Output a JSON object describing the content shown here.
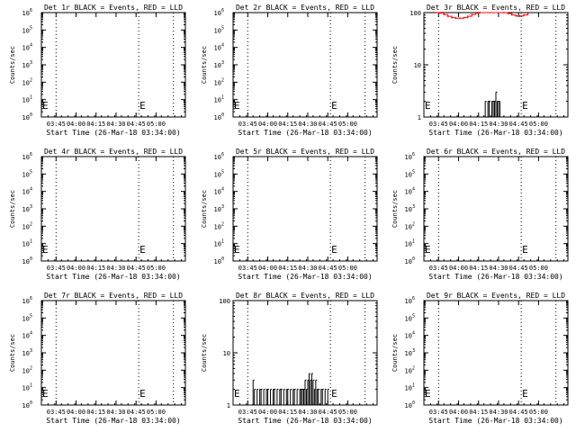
{
  "figure": {
    "background": "#ffffff",
    "axis_color": "#000000",
    "events_color": "#000000",
    "lld_color": "#ff0000"
  },
  "chart_data": [
    {
      "type": "line",
      "title": "Det 1r BLACK = Events, RED = LLD",
      "xlabel": "Start Time (26-Mar-18 03:34:00)",
      "ylabel": "Counts/sec",
      "yscale": "log",
      "ylim": [
        1,
        1000000
      ],
      "ytick_values": [
        1,
        10,
        100,
        1000,
        10000,
        100000,
        1000000
      ],
      "ytick_labels": [
        "10^0",
        "10^1",
        "10^2",
        "10^3",
        "10^4",
        "10^5",
        "10^6"
      ],
      "xticks": [
        "03:45",
        "04:00",
        "04:15",
        "04:30",
        "04:45",
        "05:00"
      ],
      "xlim_min": [
        0,
        108
      ],
      "xtick_min": [
        11,
        26,
        41,
        56,
        71,
        86
      ],
      "markers": [
        {
          "label": "E",
          "x_min": 0
        },
        {
          "label": "E",
          "x_min": 73
        }
      ],
      "dotted_lines_min": [
        11,
        73,
        99
      ],
      "series": []
    },
    {
      "type": "line",
      "title": "Det 2r BLACK = Events, RED = LLD",
      "xlabel": "Start Time (26-Mar-18 03:34:00)",
      "ylabel": "Counts/sec",
      "yscale": "log",
      "ylim": [
        1,
        1000000
      ],
      "ytick_values": [
        1,
        10,
        100,
        1000,
        10000,
        100000,
        1000000
      ],
      "ytick_labels": [
        "10^0",
        "10^1",
        "10^2",
        "10^3",
        "10^4",
        "10^5",
        "10^6"
      ],
      "xticks": [
        "03:45",
        "04:00",
        "04:15",
        "04:30",
        "04:45",
        "05:00"
      ],
      "xlim_min": [
        0,
        108
      ],
      "xtick_min": [
        11,
        26,
        41,
        56,
        71,
        86
      ],
      "markers": [
        {
          "label": "E",
          "x_min": 0
        },
        {
          "label": "E",
          "x_min": 73
        }
      ],
      "dotted_lines_min": [
        11,
        73,
        99
      ],
      "series": []
    },
    {
      "type": "line",
      "title": "Det 3r BLACK = Events, RED = LLD",
      "xlabel": "Start Time (26-Mar-18 03:34:00)",
      "ylabel": "Counts/sec",
      "yscale": "log",
      "ylim": [
        1,
        100
      ],
      "ytick_values": [
        1,
        10,
        100
      ],
      "ytick_labels": [
        "1",
        "10",
        "100"
      ],
      "xticks": [
        "03:45",
        "04:00",
        "04:15",
        "04:30",
        "04:45",
        "05:00"
      ],
      "xlim_min": [
        0,
        108
      ],
      "xtick_min": [
        11,
        26,
        41,
        56,
        71,
        86
      ],
      "markers": [
        {
          "label": "E",
          "x_min": 0
        },
        {
          "label": "E",
          "x_min": 73
        }
      ],
      "dotted_lines_min": [
        11,
        73,
        99
      ],
      "series": [
        {
          "kind": "step",
          "color": "#ff0000",
          "x": [
            9,
            12,
            15,
            18,
            21,
            24,
            27,
            30,
            33,
            36,
            39,
            42,
            60,
            63,
            66,
            69,
            72,
            75,
            78
          ],
          "y": [
            100,
            98,
            92,
            85,
            80,
            78,
            78,
            80,
            85,
            92,
            98,
            100,
            100,
            96,
            90,
            86,
            86,
            90,
            96
          ]
        },
        {
          "kind": "spikes",
          "color": "#000000",
          "x": [
            45,
            46,
            47,
            48,
            49,
            50,
            51,
            52,
            53,
            54,
            55,
            56,
            57
          ],
          "y": [
            1,
            2,
            1,
            2,
            2,
            1,
            2,
            2,
            2,
            3,
            2,
            2,
            2
          ]
        }
      ]
    },
    {
      "type": "line",
      "title": "Det 4r BLACK = Events, RED = LLD",
      "xlabel": "Start Time (26-Mar-18 03:34:00)",
      "ylabel": "Counts/sec",
      "yscale": "log",
      "ylim": [
        1,
        1000000
      ],
      "ytick_values": [
        1,
        10,
        100,
        1000,
        10000,
        100000,
        1000000
      ],
      "ytick_labels": [
        "10^0",
        "10^1",
        "10^2",
        "10^3",
        "10^4",
        "10^5",
        "10^6"
      ],
      "xticks": [
        "03:45",
        "04:00",
        "04:15",
        "04:30",
        "04:45",
        "05:00"
      ],
      "xlim_min": [
        0,
        108
      ],
      "xtick_min": [
        11,
        26,
        41,
        56,
        71,
        86
      ],
      "markers": [
        {
          "label": "E",
          "x_min": 0
        },
        {
          "label": "E",
          "x_min": 73
        }
      ],
      "dotted_lines_min": [
        11,
        73,
        99
      ],
      "series": []
    },
    {
      "type": "line",
      "title": "Det 5r BLACK = Events, RED = LLD",
      "xlabel": "Start Time (26-Mar-18 03:34:00)",
      "ylabel": "Counts/sec",
      "yscale": "log",
      "ylim": [
        1,
        1000000
      ],
      "ytick_values": [
        1,
        10,
        100,
        1000,
        10000,
        100000,
        1000000
      ],
      "ytick_labels": [
        "10^0",
        "10^1",
        "10^2",
        "10^3",
        "10^4",
        "10^5",
        "10^6"
      ],
      "xticks": [
        "03:45",
        "04:00",
        "04:15",
        "04:30",
        "04:45",
        "05:00"
      ],
      "xlim_min": [
        0,
        108
      ],
      "xtick_min": [
        11,
        26,
        41,
        56,
        71,
        86
      ],
      "markers": [
        {
          "label": "E",
          "x_min": 0
        },
        {
          "label": "E",
          "x_min": 73
        }
      ],
      "dotted_lines_min": [
        11,
        73,
        99
      ],
      "series": []
    },
    {
      "type": "line",
      "title": "Det 6r BLACK = Events, RED = LLD",
      "xlabel": "Start Time (26-Mar-18 03:34:00)",
      "ylabel": "Counts/sec",
      "yscale": "log",
      "ylim": [
        1,
        1000000
      ],
      "ytick_values": [
        1,
        10,
        100,
        1000,
        10000,
        100000,
        1000000
      ],
      "ytick_labels": [
        "10^0",
        "10^1",
        "10^2",
        "10^3",
        "10^4",
        "10^5",
        "10^6"
      ],
      "xticks": [
        "03:45",
        "04:00",
        "04:15",
        "04:30",
        "04:45",
        "05:00"
      ],
      "xlim_min": [
        0,
        108
      ],
      "xtick_min": [
        11,
        26,
        41,
        56,
        71,
        86
      ],
      "markers": [
        {
          "label": "E",
          "x_min": 0
        },
        {
          "label": "E",
          "x_min": 73
        }
      ],
      "dotted_lines_min": [
        11,
        73,
        99
      ],
      "series": []
    },
    {
      "type": "line",
      "title": "Det 7r BLACK = Events, RED = LLD",
      "xlabel": "Start Time (26-Mar-18 03:34:00)",
      "ylabel": "Counts/sec",
      "yscale": "log",
      "ylim": [
        1,
        1000000
      ],
      "ytick_values": [
        1,
        10,
        100,
        1000,
        10000,
        100000,
        1000000
      ],
      "ytick_labels": [
        "10^0",
        "10^1",
        "10^2",
        "10^3",
        "10^4",
        "10^5",
        "10^6"
      ],
      "xticks": [
        "03:45",
        "04:00",
        "04:15",
        "04:30",
        "04:45",
        "05:00"
      ],
      "xlim_min": [
        0,
        108
      ],
      "xtick_min": [
        11,
        26,
        41,
        56,
        71,
        86
      ],
      "markers": [
        {
          "label": "E",
          "x_min": 0
        },
        {
          "label": "E",
          "x_min": 73
        }
      ],
      "dotted_lines_min": [
        11,
        73,
        99
      ],
      "series": []
    },
    {
      "type": "line",
      "title": "Det 8r BLACK = Events, RED = LLD",
      "xlabel": "Start Time (26-Mar-18 03:34:00)",
      "ylabel": "Counts/sec",
      "yscale": "log",
      "ylim": [
        1,
        100
      ],
      "ytick_values": [
        1,
        10,
        100
      ],
      "ytick_labels": [
        "1",
        "10",
        "100"
      ],
      "xticks": [
        "03:45",
        "04:00",
        "04:15",
        "04:30",
        "04:45",
        "05:00"
      ],
      "xlim_min": [
        0,
        108
      ],
      "xtick_min": [
        11,
        26,
        41,
        56,
        71,
        86
      ],
      "markers": [
        {
          "label": "E",
          "x_min": 0
        },
        {
          "label": "E",
          "x_min": 73
        }
      ],
      "dotted_lines_min": [
        11,
        73,
        99
      ],
      "series": [
        {
          "kind": "spikes",
          "color": "#000000",
          "x": [
            15,
            16,
            17,
            18,
            19,
            20,
            21,
            22,
            23,
            24,
            25,
            26,
            27,
            28,
            29,
            30,
            31,
            32,
            33,
            34,
            35,
            36,
            37,
            38,
            39,
            40,
            41,
            42,
            43,
            44,
            45,
            46,
            47,
            48,
            49,
            50,
            51,
            52,
            53,
            54,
            55,
            56,
            57,
            58,
            59,
            60,
            61,
            62,
            63,
            64,
            65,
            66,
            67,
            68,
            69,
            70,
            71,
            72
          ],
          "y": [
            3,
            2,
            1,
            2,
            1,
            2,
            2,
            1,
            2,
            1,
            2,
            2,
            1,
            2,
            1,
            2,
            2,
            1,
            2,
            1,
            2,
            2,
            1,
            2,
            1,
            2,
            2,
            1,
            2,
            1,
            2,
            2,
            1,
            2,
            1,
            2,
            2,
            2,
            2,
            3,
            2,
            3,
            4,
            3,
            4,
            3,
            2,
            3,
            2,
            2,
            1,
            2,
            2,
            1,
            2,
            1,
            2,
            1
          ]
        }
      ]
    },
    {
      "type": "line",
      "title": "Det 9r BLACK = Events, RED = LLD",
      "xlabel": "Start Time (26-Mar-18 03:34:00)",
      "ylabel": "Counts/sec",
      "yscale": "log",
      "ylim": [
        1,
        1000000
      ],
      "ytick_values": [
        1,
        10,
        100,
        1000,
        10000,
        100000,
        1000000
      ],
      "ytick_labels": [
        "10^0",
        "10^1",
        "10^2",
        "10^3",
        "10^4",
        "10^5",
        "10^6"
      ],
      "xticks": [
        "03:45",
        "04:00",
        "04:15",
        "04:30",
        "04:45",
        "05:00"
      ],
      "xlim_min": [
        0,
        108
      ],
      "xtick_min": [
        11,
        26,
        41,
        56,
        71,
        86
      ],
      "markers": [
        {
          "label": "E",
          "x_min": 0
        },
        {
          "label": "E",
          "x_min": 73
        }
      ],
      "dotted_lines_min": [
        11,
        73,
        99
      ],
      "series": []
    }
  ]
}
